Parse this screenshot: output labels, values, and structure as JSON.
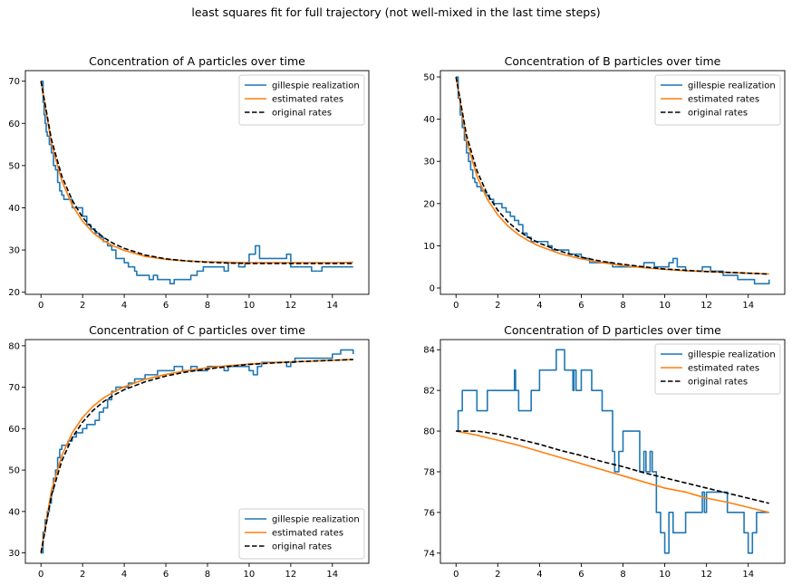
{
  "suptitle": "least squares fit for full trajectory (not well-mixed in the last time steps)",
  "colors": {
    "gillespie": "#1f77b4",
    "estimated": "#ff7f0e",
    "original": "#000000"
  },
  "chart_data": [
    {
      "type": "line",
      "title": "Concentration of A particles over time",
      "xlabel": "",
      "ylabel": "",
      "xlim": [
        -0.75,
        15.75
      ],
      "ylim": [
        19.5,
        72.5
      ],
      "xticks": [
        0,
        2,
        4,
        6,
        8,
        10,
        12,
        14
      ],
      "yticks": [
        20,
        30,
        40,
        50,
        60,
        70
      ],
      "legend_loc": "upper right",
      "series": [
        {
          "name": "gillespie realization",
          "style": "step",
          "color": "#1f77b4",
          "x": [
            0,
            0.1,
            0.15,
            0.2,
            0.25,
            0.3,
            0.4,
            0.5,
            0.6,
            0.7,
            0.8,
            0.9,
            1.0,
            1.1,
            1.3,
            1.5,
            1.6,
            2.0,
            2.2,
            2.4,
            2.6,
            2.8,
            3.0,
            3.2,
            3.4,
            3.6,
            4.0,
            4.2,
            4.5,
            4.6,
            5.0,
            5.2,
            5.4,
            5.6,
            5.8,
            6.2,
            6.4,
            6.8,
            7.2,
            7.5,
            7.8,
            8.0,
            8.2,
            8.8,
            9.0,
            9.5,
            9.8,
            10.0,
            10.3,
            10.5,
            11.8,
            12.0,
            12.2,
            12.8,
            13.0,
            13.5,
            14.0,
            15.0
          ],
          "y": [
            70,
            65,
            62,
            60,
            58,
            57,
            55,
            53,
            50,
            49,
            46,
            44,
            43,
            42,
            42,
            40,
            40,
            38,
            36,
            35,
            34,
            33,
            32,
            31,
            30,
            28,
            27,
            26,
            25,
            24,
            24,
            23,
            24,
            23,
            23,
            22,
            23,
            23,
            24,
            25,
            26,
            26,
            26,
            25,
            27,
            26,
            27,
            29,
            31,
            28,
            29,
            26,
            26,
            26,
            25,
            26,
            26,
            26
          ]
        },
        {
          "name": "estimated rates",
          "style": "curve",
          "color": "#ff7f0e",
          "x": [
            0,
            0.5,
            1,
            1.5,
            2,
            2.5,
            3,
            3.5,
            4,
            5,
            6,
            7,
            8,
            9,
            10,
            11,
            12,
            13,
            14,
            15
          ],
          "y": [
            70,
            55.3,
            46.4,
            40.6,
            36.8,
            34.1,
            32.2,
            30.9,
            29.9,
            28.5,
            27.8,
            27.4,
            27.2,
            27.1,
            27.0,
            27.0,
            27.0,
            27.0,
            27.0,
            27.1
          ]
        },
        {
          "name": "original rates",
          "style": "dashed",
          "color": "#000000",
          "x": [
            0,
            0.5,
            1,
            1.5,
            2,
            2.5,
            3,
            3.5,
            4,
            5,
            6,
            7,
            8,
            9,
            10,
            11,
            12,
            13,
            14,
            15
          ],
          "y": [
            70,
            56.2,
            47.5,
            41.8,
            37.7,
            35.0,
            33.0,
            31.5,
            30.4,
            28.8,
            27.9,
            27.4,
            27.1,
            26.9,
            26.8,
            26.8,
            26.8,
            26.8,
            26.8,
            26.8
          ]
        }
      ]
    },
    {
      "type": "line",
      "title": "Concentration of B particles over time",
      "xlabel": "",
      "ylabel": "",
      "xlim": [
        -0.75,
        15.75
      ],
      "ylim": [
        -1.5,
        51.5
      ],
      "xticks": [
        0,
        2,
        4,
        6,
        8,
        10,
        12,
        14
      ],
      "yticks": [
        0,
        10,
        20,
        30,
        40,
        50
      ],
      "legend_loc": "upper right",
      "series": [
        {
          "name": "gillespie realization",
          "style": "step",
          "color": "#1f77b4",
          "x": [
            0,
            0.1,
            0.2,
            0.3,
            0.4,
            0.5,
            0.6,
            0.7,
            0.8,
            0.9,
            1.0,
            1.2,
            1.4,
            1.6,
            1.8,
            2.0,
            2.2,
            2.4,
            2.6,
            2.8,
            3.0,
            3.2,
            3.4,
            3.6,
            4.0,
            4.4,
            4.6,
            5.0,
            5.4,
            6.0,
            6.4,
            6.8,
            7.5,
            8.0,
            8.5,
            9.0,
            9.5,
            10.0,
            10.2,
            10.4,
            10.6,
            11.0,
            11.8,
            12.2,
            12.8,
            13.5,
            14.0,
            14.3,
            15.0
          ],
          "y": [
            50,
            45,
            41,
            38,
            35,
            32,
            30,
            28,
            26,
            25,
            24,
            23,
            22,
            21,
            20,
            20,
            19,
            18,
            17,
            16,
            15,
            13,
            12,
            11,
            11,
            10,
            9,
            9,
            8,
            7,
            6,
            6,
            5,
            5,
            5,
            6,
            5,
            5,
            6,
            7,
            5,
            4,
            5,
            4,
            3,
            2,
            2,
            1,
            2
          ]
        },
        {
          "name": "estimated rates",
          "style": "curve",
          "color": "#ff7f0e",
          "x": [
            0,
            0.5,
            1,
            1.5,
            2,
            2.5,
            3,
            3.5,
            4,
            5,
            6,
            7,
            8,
            9,
            10,
            11,
            12,
            13,
            14,
            15
          ],
          "y": [
            50,
            35.0,
            26.5,
            21.0,
            17.3,
            14.6,
            12.6,
            11.1,
            9.9,
            8.1,
            6.9,
            6.0,
            5.3,
            4.8,
            4.4,
            4.1,
            3.9,
            3.7,
            3.5,
            3.3
          ]
        },
        {
          "name": "original rates",
          "style": "dashed",
          "color": "#000000",
          "x": [
            0,
            0.5,
            1,
            1.5,
            2,
            2.5,
            3,
            3.5,
            4,
            5,
            6,
            7,
            8,
            9,
            10,
            11,
            12,
            13,
            14,
            15
          ],
          "y": [
            50,
            36.2,
            27.8,
            22.2,
            18.4,
            15.6,
            13.5,
            11.9,
            10.6,
            8.7,
            7.3,
            6.3,
            5.6,
            5.0,
            4.5,
            4.2,
            3.9,
            3.7,
            3.5,
            3.3
          ]
        }
      ]
    },
    {
      "type": "line",
      "title": "Concentration of C particles over time",
      "xlabel": "",
      "ylabel": "",
      "xlim": [
        -0.75,
        15.75
      ],
      "ylim": [
        27.5,
        81.5
      ],
      "xticks": [
        0,
        2,
        4,
        6,
        8,
        10,
        12,
        14
      ],
      "yticks": [
        30,
        40,
        50,
        60,
        70,
        80
      ],
      "legend_loc": "lower right",
      "series": [
        {
          "name": "gillespie realization",
          "style": "step",
          "color": "#1f77b4",
          "x": [
            0,
            0.1,
            0.2,
            0.3,
            0.4,
            0.5,
            0.6,
            0.7,
            0.8,
            0.9,
            1.0,
            1.1,
            1.3,
            1.5,
            1.7,
            2.0,
            2.2,
            2.4,
            2.6,
            2.8,
            3.0,
            3.2,
            3.4,
            3.6,
            4.0,
            4.2,
            4.5,
            5.0,
            5.2,
            5.6,
            6.0,
            6.4,
            6.8,
            7.2,
            7.5,
            8.0,
            8.2,
            8.8,
            9.0,
            9.5,
            10.0,
            10.2,
            10.4,
            10.6,
            11.0,
            11.8,
            12.0,
            12.2,
            13.0,
            14.0,
            14.4,
            15.0
          ],
          "y": [
            30,
            35,
            38,
            40,
            42,
            45,
            48,
            50,
            53,
            55,
            56,
            56,
            57,
            58,
            59,
            60,
            61,
            61,
            62,
            64,
            65,
            67,
            69,
            70,
            70,
            71,
            72,
            73,
            73,
            74,
            74,
            75,
            74,
            75,
            74,
            75,
            75,
            74,
            75,
            75,
            74,
            73,
            75,
            76,
            76,
            75,
            76,
            77,
            77,
            78,
            79,
            78
          ]
        },
        {
          "name": "estimated rates",
          "style": "curve",
          "color": "#ff7f0e",
          "x": [
            0,
            0.5,
            1,
            1.5,
            2,
            2.5,
            3,
            3.5,
            4,
            5,
            6,
            7,
            8,
            9,
            10,
            11,
            12,
            13,
            14,
            15
          ],
          "y": [
            30,
            45.0,
            53.5,
            59.0,
            62.7,
            65.4,
            67.4,
            68.9,
            70.1,
            71.9,
            73.1,
            74.0,
            74.7,
            75.2,
            75.6,
            75.9,
            76.1,
            76.3,
            76.5,
            76.7
          ]
        },
        {
          "name": "original rates",
          "style": "dashed",
          "color": "#000000",
          "x": [
            0,
            0.5,
            1,
            1.5,
            2,
            2.5,
            3,
            3.5,
            4,
            5,
            6,
            7,
            8,
            9,
            10,
            11,
            12,
            13,
            14,
            15
          ],
          "y": [
            30,
            43.8,
            52.2,
            57.8,
            61.6,
            64.4,
            66.5,
            68.1,
            69.4,
            71.3,
            72.7,
            73.7,
            74.4,
            75.0,
            75.5,
            75.8,
            76.1,
            76.3,
            76.5,
            76.7
          ]
        }
      ]
    },
    {
      "type": "line",
      "title": "Concentration of D particles over time",
      "xlabel": "",
      "ylabel": "",
      "xlim": [
        -0.75,
        15.75
      ],
      "ylim": [
        73.5,
        84.5
      ],
      "xticks": [
        0,
        2,
        4,
        6,
        8,
        10,
        12,
        14
      ],
      "yticks": [
        74,
        76,
        78,
        80,
        82,
        84
      ],
      "legend_loc": "upper right",
      "series": [
        {
          "name": "gillespie realization",
          "style": "step",
          "color": "#1f77b4",
          "x": [
            0,
            0.1,
            0.3,
            0.5,
            1.0,
            1.5,
            1.6,
            2.0,
            2.4,
            2.8,
            2.85,
            2.9,
            3.0,
            3.6,
            4.0,
            4.8,
            5.2,
            5.6,
            5.65,
            5.75,
            5.8,
            6.0,
            6.5,
            7.0,
            7.5,
            7.6,
            7.8,
            8.0,
            8.8,
            9.0,
            9.1,
            9.3,
            9.4,
            9.6,
            9.8,
            10.0,
            10.2,
            10.4,
            11.0,
            11.8,
            11.9,
            12.0,
            12.2,
            13.0,
            13.8,
            14.0,
            14.2,
            14.4,
            15.0
          ],
          "y": [
            80,
            81,
            82,
            82,
            81,
            82,
            82,
            82,
            82,
            83,
            82,
            82,
            81,
            82,
            83,
            84,
            83,
            82,
            83,
            82,
            82,
            83,
            82,
            81,
            79,
            78,
            79,
            80,
            78,
            79,
            78,
            79,
            78,
            76,
            75,
            74,
            76,
            75,
            76,
            77,
            76,
            77,
            77,
            76,
            75,
            74,
            75,
            76,
            76
          ]
        },
        {
          "name": "estimated rates",
          "style": "curve",
          "color": "#ff7f0e",
          "x": [
            0,
            1,
            2,
            3,
            4,
            5,
            6,
            7,
            8,
            9,
            10,
            11,
            12,
            13,
            14,
            15
          ],
          "y": [
            80.0,
            79.8,
            79.55,
            79.3,
            79.0,
            78.7,
            78.4,
            78.1,
            77.8,
            77.5,
            77.2,
            77.0,
            76.7,
            76.5,
            76.25,
            76.0
          ]
        },
        {
          "name": "original rates",
          "style": "dashed",
          "color": "#000000",
          "x": [
            0,
            1,
            2,
            3,
            4,
            5,
            6,
            7,
            8,
            9,
            10,
            11,
            12,
            13,
            14,
            15
          ],
          "y": [
            80.0,
            80.0,
            79.85,
            79.6,
            79.35,
            79.05,
            78.8,
            78.5,
            78.25,
            77.95,
            77.7,
            77.45,
            77.2,
            76.95,
            76.7,
            76.45
          ]
        }
      ]
    }
  ]
}
